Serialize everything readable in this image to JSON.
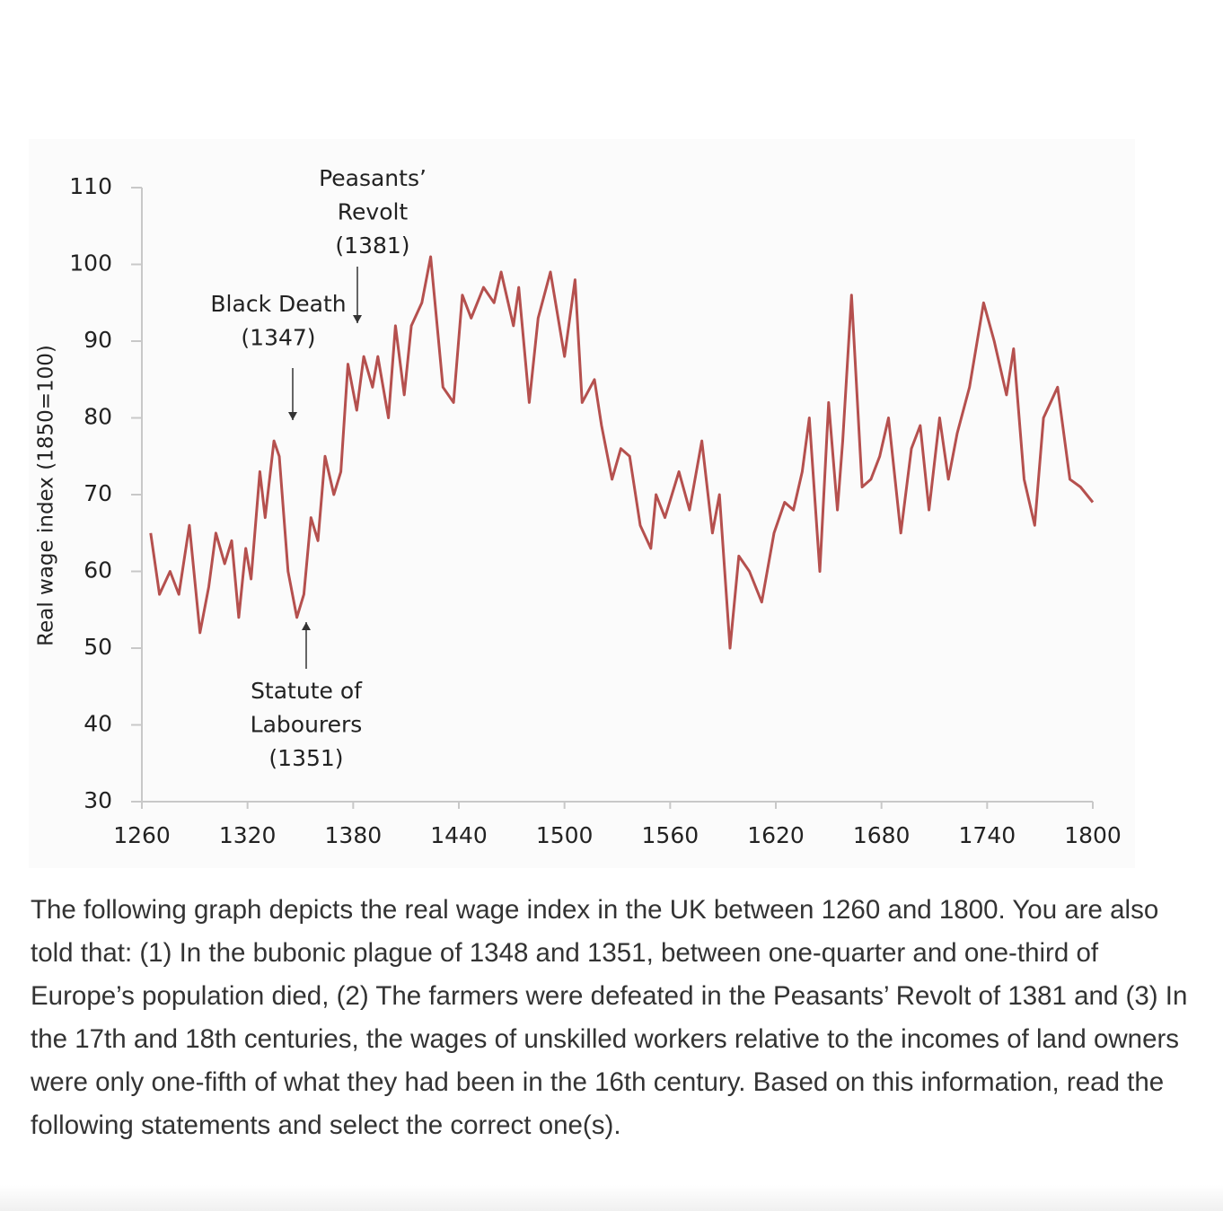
{
  "chart_data": {
    "type": "line",
    "ylabel": "Real wage index (1850=100)",
    "x": [
      1265,
      1270,
      1276,
      1281,
      1287,
      1293,
      1298,
      1302,
      1307,
      1311,
      1315,
      1319,
      1322,
      1327,
      1330,
      1335,
      1338,
      1343,
      1348,
      1352,
      1356,
      1360,
      1364,
      1369,
      1373,
      1377,
      1382,
      1386,
      1391,
      1394,
      1400,
      1404,
      1409,
      1413,
      1419,
      1424,
      1431,
      1437,
      1442,
      1447,
      1454,
      1460,
      1464,
      1471,
      1474,
      1480,
      1485,
      1492,
      1500,
      1506,
      1510,
      1517,
      1521,
      1527,
      1532,
      1537,
      1543,
      1549,
      1552,
      1557,
      1565,
      1571,
      1578,
      1584,
      1588,
      1594,
      1599,
      1605,
      1612,
      1619,
      1625,
      1630,
      1635,
      1639,
      1645,
      1650,
      1655,
      1658,
      1663,
      1669,
      1674,
      1679,
      1684,
      1691,
      1697,
      1702,
      1707,
      1713,
      1718,
      1723,
      1730,
      1738,
      1744,
      1751,
      1755,
      1761,
      1767,
      1772,
      1780,
      1787,
      1793,
      1800
    ],
    "values": [
      65,
      57,
      60,
      57,
      66,
      52,
      58,
      65,
      61,
      64,
      54,
      63,
      59,
      73,
      67,
      77,
      75,
      60,
      54,
      57,
      67,
      64,
      75,
      70,
      73,
      87,
      81,
      88,
      84,
      88,
      80,
      92,
      83,
      92,
      95,
      101,
      84,
      82,
      96,
      93,
      97,
      95,
      99,
      92,
      97,
      82,
      93,
      99,
      88,
      98,
      82,
      85,
      79,
      72,
      76,
      75,
      66,
      63,
      70,
      67,
      73,
      68,
      77,
      65,
      70,
      50,
      62,
      60,
      56,
      65,
      69,
      68,
      73,
      80,
      60,
      82,
      68,
      77,
      96,
      71,
      72,
      75,
      80,
      65,
      76,
      79,
      68,
      80,
      72,
      78,
      84,
      95,
      90,
      83,
      89,
      72,
      66,
      80,
      84,
      72,
      71,
      69
    ],
    "color": "#b5504e",
    "xlim": [
      1260,
      1800
    ],
    "xticks": [
      1260,
      1320,
      1380,
      1440,
      1500,
      1560,
      1620,
      1680,
      1740,
      1800
    ],
    "ylim": [
      30,
      110
    ],
    "yticks": [
      30,
      40,
      50,
      60,
      70,
      80,
      90,
      100,
      110
    ],
    "grid": false,
    "annotations": [
      [
        "Peasants’",
        "Revolt",
        "(1381)"
      ],
      [
        "Black Death",
        "(1347)"
      ],
      [
        "Statute of",
        "Labourers",
        "(1351)"
      ]
    ]
  },
  "question": {
    "text": "The following graph depicts the real wage index in the UK between 1260 and 1800. You are also told that: (1) In the bubonic plague of 1348 and 1351, between one-quarter and one-third of Europe’s population died, (2) The farmers were defeated in the Peasants’ Revolt of 1381 and (3) In the 17th and 18th centuries, the wages of unskilled workers relative to the incomes of land owners were only one-fifth of what they had been in the 16th century. Based on this information, read the following statements and select the correct one(s)."
  }
}
